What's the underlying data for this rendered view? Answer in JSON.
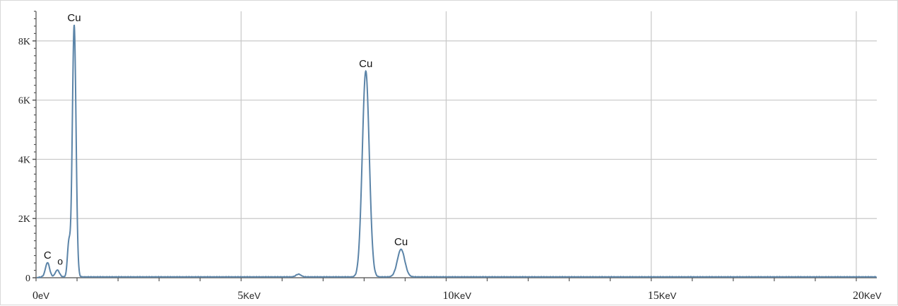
{
  "chart_data": {
    "type": "line",
    "title": "",
    "xlabel": "",
    "ylabel": "",
    "xlim": [
      0,
      20.5
    ],
    "ylim": [
      0,
      9000
    ],
    "grid": true,
    "legend": "none",
    "line_color": "#5b84a8",
    "grid_color": "#c8c8c8",
    "x_ticks": [
      {
        "value": 0,
        "num": "0",
        "unit": "eV"
      },
      {
        "value": 5,
        "num": "5",
        "unit": "KeV"
      },
      {
        "value": 10,
        "num": "10",
        "unit": "KeV"
      },
      {
        "value": 15,
        "num": "15",
        "unit": "KeV"
      },
      {
        "value": 20,
        "num": "20",
        "unit": "KeV"
      }
    ],
    "y_ticks": [
      {
        "value": 0,
        "label": "0"
      },
      {
        "value": 2000,
        "label": "2K"
      },
      {
        "value": 4000,
        "label": "4K"
      },
      {
        "value": 6000,
        "label": "6K"
      },
      {
        "value": 8000,
        "label": "8K"
      }
    ],
    "baseline_counts": 30,
    "peaks": [
      {
        "label": "C",
        "energy": 0.28,
        "counts": 480,
        "width": 0.05
      },
      {
        "label": "O",
        "energy": 0.52,
        "counts": 230,
        "width": 0.05
      },
      {
        "label": "",
        "energy": 0.8,
        "counts": 1150,
        "width": 0.035
      },
      {
        "label": "Cu",
        "energy": 0.93,
        "counts": 8500,
        "width": 0.045
      },
      {
        "label": "",
        "energy": 6.4,
        "counts": 90,
        "width": 0.06
      },
      {
        "label": "Cu",
        "energy": 8.04,
        "counts": 6950,
        "width": 0.085
      },
      {
        "label": "Cu",
        "energy": 8.9,
        "counts": 930,
        "width": 0.09
      }
    ],
    "annotations": [
      {
        "text": "Cu",
        "energy": 0.93,
        "counts": 8500
      },
      {
        "text": "Cu",
        "energy": 8.04,
        "counts": 6950
      },
      {
        "text": "Cu",
        "energy": 8.9,
        "counts": 930
      },
      {
        "text": "C",
        "energy": 0.28,
        "counts": 480
      },
      {
        "text": "o",
        "energy": 0.52,
        "counts": 230
      }
    ]
  }
}
